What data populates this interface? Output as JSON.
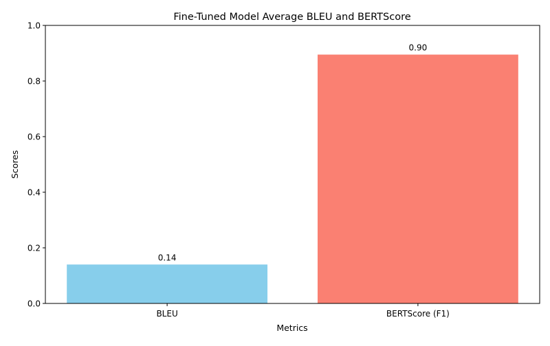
{
  "chart_data": {
    "type": "bar",
    "title": "Fine-Tuned Model Average BLEU and BERTScore",
    "xlabel": "Metrics",
    "ylabel": "Scores",
    "categories": [
      "BLEU",
      "BERTScore (F1)"
    ],
    "values": [
      0.14,
      0.895
    ],
    "value_labels": [
      "0.14",
      "0.90"
    ],
    "colors": [
      "#87ceeb",
      "#fa8072"
    ],
    "ylim": [
      0,
      1.0
    ],
    "yticks": [
      "0.0",
      "0.2",
      "0.4",
      "0.6",
      "0.8",
      "1.0"
    ],
    "grid": false,
    "legend": "none"
  }
}
